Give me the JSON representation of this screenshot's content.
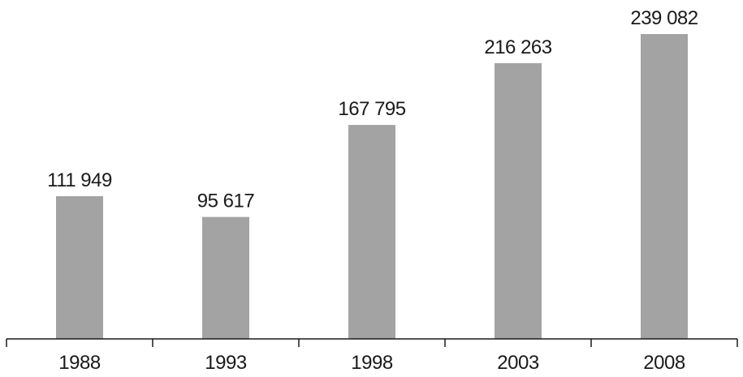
{
  "chart_data": {
    "type": "bar",
    "categories": [
      "1988",
      "1993",
      "1998",
      "2003",
      "2008"
    ],
    "values": [
      111949,
      95617,
      167795,
      216263,
      239082
    ],
    "value_labels": [
      "111 949",
      "95 617",
      "167 795",
      "216 263",
      "239 082"
    ],
    "title": "",
    "xlabel": "",
    "ylabel": "",
    "ylim": [
      0,
      239082
    ],
    "grid": false,
    "legend": "none",
    "bar_color": "#a3a3a3",
    "axis_color": "#1a1a1a"
  }
}
